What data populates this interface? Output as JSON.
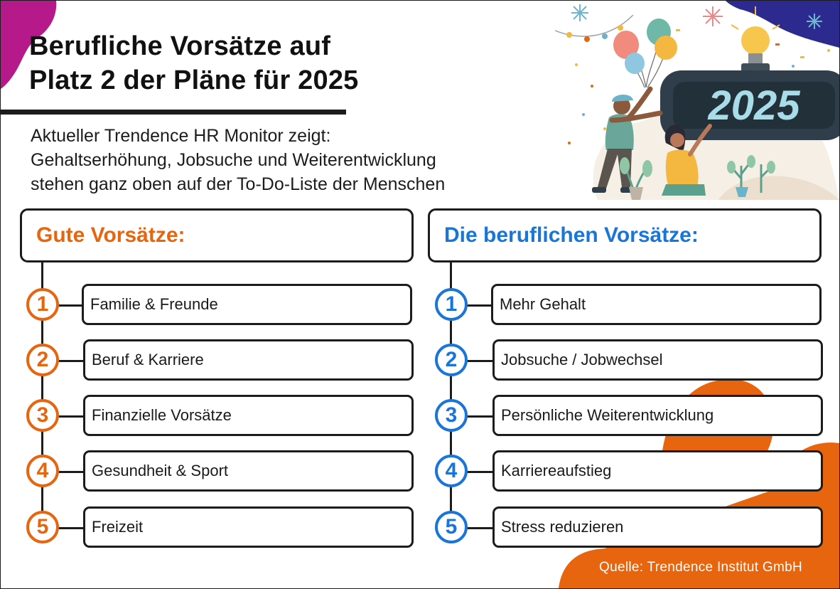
{
  "title": {
    "line1": "Berufliche Vorsätze auf",
    "line2": "Platz 2 der Pläne für 2025"
  },
  "subtitle": {
    "line1": "Aktueller Trendence HR Monitor zeigt:",
    "line2": "Gehaltserhöhung, Jobsuche und Weiterentwicklung",
    "line3": "stehen ganz oben auf der To-Do-Liste der Menschen"
  },
  "illustration": {
    "clock_text": "2025",
    "icons": [
      "balloons-icon",
      "lightbulb-icon",
      "snowflake-icon",
      "plant-icon",
      "man-figure",
      "woman-figure",
      "digital-clock"
    ]
  },
  "left_list": {
    "heading": "Gute Vorsätze:",
    "accent": "#e8650f",
    "items": [
      {
        "number": "1",
        "label": "Familie & Freunde"
      },
      {
        "number": "2",
        "label": "Beruf & Karriere"
      },
      {
        "number": "3",
        "label": "Finanzielle Vorsätze"
      },
      {
        "number": "4",
        "label": "Gesundheit & Sport"
      },
      {
        "number": "5",
        "label": "Freizeit"
      }
    ]
  },
  "right_list": {
    "heading": "Die beruflichen Vorsätze:",
    "accent": "#1976d8",
    "items": [
      {
        "number": "1",
        "label": "Mehr Gehalt"
      },
      {
        "number": "2",
        "label": "Jobsuche / Jobwechsel"
      },
      {
        "number": "3",
        "label": "Persönliche Weiterentwicklung"
      },
      {
        "number": "4",
        "label": "Karriereaufstieg"
      },
      {
        "number": "5",
        "label": "Stress reduzieren"
      }
    ]
  },
  "source": "Quelle: Trendence Institut GmbH",
  "colors": {
    "orange": "#e8650f",
    "blue": "#1976d8",
    "magenta": "#b5198a",
    "navy": "#2c2a8e",
    "clock": "#2f3e4a",
    "clock_digits": "#a8dce8"
  }
}
